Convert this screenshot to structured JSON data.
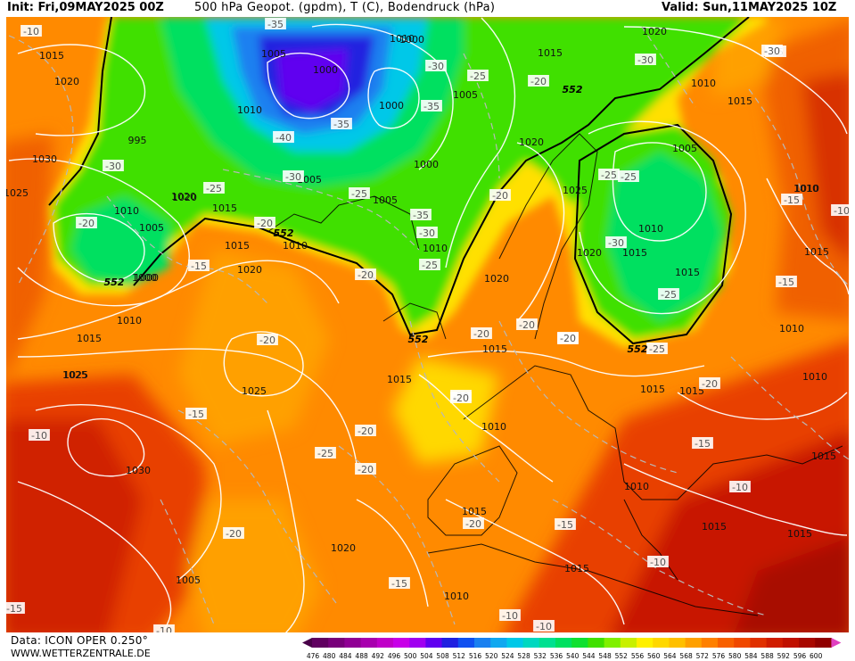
{
  "header": {
    "init": "Init: Fri,09MAY2025 00Z",
    "title": "500 hPa Geopot. (gpdm), T (C), Bodendruck (hPa)",
    "valid": "Valid: Sun,11MAY2025 10Z"
  },
  "footer": {
    "data_source": "Data: ICON OPER 0.250°",
    "website": "WWW.WETTERZENTRALE.DE"
  },
  "legend": {
    "values": [
      "476",
      "480",
      "484",
      "488",
      "492",
      "496",
      "500",
      "504",
      "508",
      "512",
      "516",
      "520",
      "524",
      "528",
      "532",
      "536",
      "540",
      "544",
      "548",
      "552",
      "556",
      "560",
      "564",
      "568",
      "572",
      "576",
      "580",
      "584",
      "588",
      "592",
      "596",
      "600"
    ],
    "colors": [
      "#600060",
      "#78007a",
      "#900094",
      "#a800ae",
      "#c000c8",
      "#c800e8",
      "#a000f0",
      "#6000f0",
      "#2020e0",
      "#1050f0",
      "#1a80f0",
      "#10a8f0",
      "#00c8e8",
      "#00d8c0",
      "#00e090",
      "#00e060",
      "#10e030",
      "#40e000",
      "#80f000",
      "#c8f000",
      "#fff000",
      "#ffd800",
      "#ffc000",
      "#ffa000",
      "#ff8000",
      "#f86000",
      "#f04800",
      "#e03000",
      "#d01c00",
      "#c01000",
      "#a80800",
      "#900000"
    ]
  },
  "map": {
    "pressure_labels": [
      {
        "text": "1015"
      },
      {
        "text": "1020"
      },
      {
        "text": "1030"
      },
      {
        "text": "1025"
      },
      {
        "text": "1005"
      },
      {
        "text": "1010"
      },
      {
        "text": "1020"
      },
      {
        "text": "1005"
      },
      {
        "text": "1010"
      },
      {
        "text": "1000"
      },
      {
        "text": "1015"
      },
      {
        "text": "1010"
      },
      {
        "text": "1015"
      },
      {
        "text": "1020"
      },
      {
        "text": "1025"
      },
      {
        "text": "1030"
      },
      {
        "text": "1015"
      },
      {
        "text": "1005"
      },
      {
        "text": "1000"
      },
      {
        "text": "1010"
      },
      {
        "text": "1005"
      },
      {
        "text": "1020"
      },
      {
        "text": "1010"
      },
      {
        "text": "1000"
      },
      {
        "text": "1000"
      },
      {
        "text": "1000"
      },
      {
        "text": "1005"
      },
      {
        "text": "1010"
      },
      {
        "text": "995"
      },
      {
        "text": "1025"
      },
      {
        "text": "1020"
      },
      {
        "text": "1005"
      },
      {
        "text": "1025"
      },
      {
        "text": "1020"
      },
      {
        "text": "1020"
      },
      {
        "text": "1015"
      },
      {
        "text": "1015"
      },
      {
        "text": "1010"
      },
      {
        "text": "1020"
      },
      {
        "text": "1015"
      },
      {
        "text": "1015"
      },
      {
        "text": "1010"
      },
      {
        "text": "1015"
      },
      {
        "text": "1020"
      },
      {
        "text": "1005"
      },
      {
        "text": "1010"
      },
      {
        "text": "1015"
      },
      {
        "text": "1010"
      },
      {
        "text": "1015"
      },
      {
        "text": "1015"
      },
      {
        "text": "1015"
      },
      {
        "text": "1010"
      },
      {
        "text": "1010"
      },
      {
        "text": "1015"
      },
      {
        "text": "1025"
      },
      {
        "text": "1015"
      },
      {
        "text": "1015"
      },
      {
        "text": "1015"
      },
      {
        "text": "1010"
      },
      {
        "text": "1015"
      },
      {
        "text": "1010"
      },
      {
        "text": "1010"
      },
      {
        "text": "1000"
      }
    ],
    "temp_labels": [
      {
        "text": "-10"
      },
      {
        "text": "-30"
      },
      {
        "text": "-20"
      },
      {
        "text": "-15"
      },
      {
        "text": "-25"
      },
      {
        "text": "-35"
      },
      {
        "text": "-35"
      },
      {
        "text": "-40"
      },
      {
        "text": "-35"
      },
      {
        "text": "-30"
      },
      {
        "text": "-25"
      },
      {
        "text": "-30"
      },
      {
        "text": "-25"
      },
      {
        "text": "-25"
      },
      {
        "text": "-35"
      },
      {
        "text": "-30"
      },
      {
        "text": "-25"
      },
      {
        "text": "-25"
      },
      {
        "text": "-20"
      },
      {
        "text": "-20"
      },
      {
        "text": "-20"
      },
      {
        "text": "-20"
      },
      {
        "text": "-15"
      },
      {
        "text": "-15"
      },
      {
        "text": "-20"
      },
      {
        "text": "-25"
      },
      {
        "text": "-30"
      },
      {
        "text": "-30"
      },
      {
        "text": "-20"
      },
      {
        "text": "-25"
      },
      {
        "text": "-30"
      },
      {
        "text": "-20"
      },
      {
        "text": "-20"
      },
      {
        "text": "-25"
      },
      {
        "text": "-20"
      },
      {
        "text": "-20"
      },
      {
        "text": "-20"
      },
      {
        "text": "-20"
      },
      {
        "text": "-20"
      },
      {
        "text": "-15"
      },
      {
        "text": "-20"
      },
      {
        "text": "-15"
      },
      {
        "text": "-20"
      },
      {
        "text": "-10"
      },
      {
        "text": "-15"
      },
      {
        "text": "-15"
      },
      {
        "text": "-20"
      },
      {
        "text": "-15"
      },
      {
        "text": "-10"
      },
      {
        "text": "-10"
      },
      {
        "text": "-10"
      },
      {
        "text": "-10"
      },
      {
        "text": "-10"
      },
      {
        "text": "-15"
      },
      {
        "text": "-10"
      }
    ],
    "geopot_labels": [
      {
        "text": "552"
      },
      {
        "text": "552"
      },
      {
        "text": "552"
      },
      {
        "text": "552"
      },
      {
        "text": "552"
      }
    ]
  }
}
